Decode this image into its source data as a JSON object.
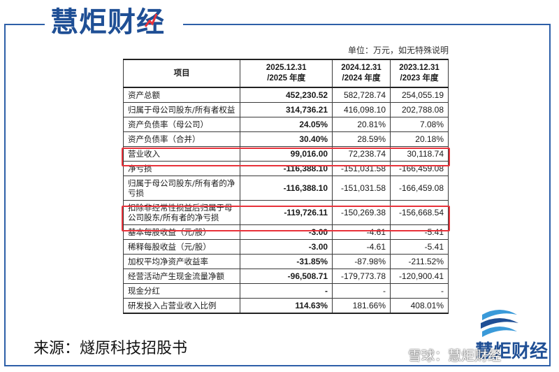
{
  "brand": {
    "name": "慧炬财经"
  },
  "unit_note": "单位：万元，如无特殊说明",
  "table": {
    "headers": [
      "项目",
      "2025.12.31\n/2025 年度",
      "2024.12.31\n/2024 年度",
      "2023.12.31\n/2023 年度"
    ],
    "rows": [
      [
        "资产总额",
        "452,230.52",
        "582,728.74",
        "254,055.19"
      ],
      [
        "归属于母公司股东/所有者权益",
        "314,736.21",
        "416,098.10",
        "202,788.08"
      ],
      [
        "资产负债率（母公司）",
        "24.05%",
        "20.81%",
        "7.08%"
      ],
      [
        "资产负债率（合并）",
        "30.40%",
        "28.59%",
        "20.18%"
      ],
      [
        "营业收入",
        "99,016.00",
        "72,238.74",
        "30,118.74"
      ],
      [
        "净亏损",
        "-116,388.10",
        "-151,031.58",
        "-166,459.08"
      ],
      [
        "归属于母公司股东/所有者的净亏损",
        "-116,388.10",
        "-151,031.58",
        "-166,459.08"
      ],
      [
        "扣除非经常性损益后归属于母公司股东/所有者的净亏损",
        "-119,726.11",
        "-150,269.38",
        "-156,668.54"
      ],
      [
        "基本每股收益（元/股）",
        "-3.00",
        "-4.61",
        "-5.41"
      ],
      [
        "稀释每股收益（元/股）",
        "-3.00",
        "-4.61",
        "-5.41"
      ],
      [
        "加权平均净资产收益率",
        "-31.85%",
        "-87.98%",
        "-211.52%"
      ],
      [
        "经营活动产生现金流量净额",
        "-96,508.71",
        "-179,773.78",
        "-120,900.41"
      ],
      [
        "现金分红",
        "-",
        "-",
        "-"
      ],
      [
        "研发投入占营业收入比例",
        "114.63%",
        "181.66%",
        "408.01%"
      ]
    ]
  },
  "source": "来源：燧原科技招股书",
  "logo_text": "慧炬财经",
  "watermark": "雪球：慧炬财经",
  "colors": {
    "brand_blue": "#1f4f95",
    "highlight_red": "#e8323a",
    "frame_blue": "#2d5fa8"
  }
}
